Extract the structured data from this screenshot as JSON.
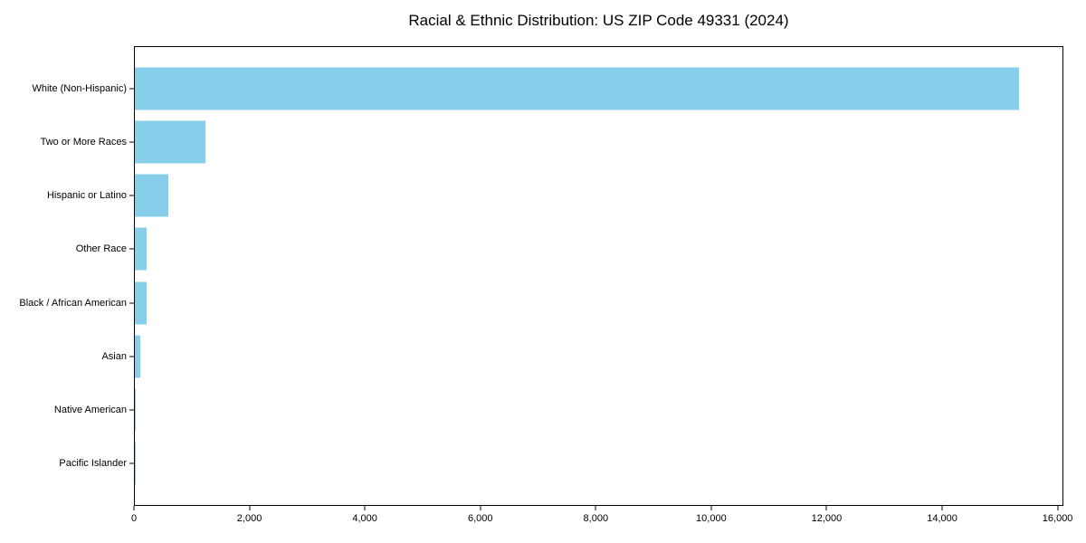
{
  "chart_data": {
    "type": "bar",
    "orientation": "horizontal",
    "title": "Racial & Ethnic Distribution: US ZIP Code 49331 (2024)",
    "categories": [
      "White (Non-Hispanic)",
      "Two or More Races",
      "Hispanic or Latino",
      "Other Race",
      "Black / African American",
      "Asian",
      "Native American",
      "Pacific Islander"
    ],
    "values": [
      15340,
      1220,
      580,
      210,
      205,
      95,
      20,
      5
    ],
    "xlabel": "",
    "ylabel": "",
    "xlim": [
      0,
      16100
    ],
    "x_ticks": [
      0,
      2000,
      4000,
      6000,
      8000,
      10000,
      12000,
      14000,
      16000
    ],
    "x_tick_labels": [
      "0",
      "2,000",
      "4,000",
      "6,000",
      "8,000",
      "10,000",
      "12,000",
      "14,000",
      "16,000"
    ],
    "grid": false,
    "legend": null,
    "bar_color": "#87CEEB"
  },
  "colors": {
    "bar": "#87CEEB",
    "text": "#000000",
    "axis": "#000000",
    "background": "#ffffff"
  }
}
